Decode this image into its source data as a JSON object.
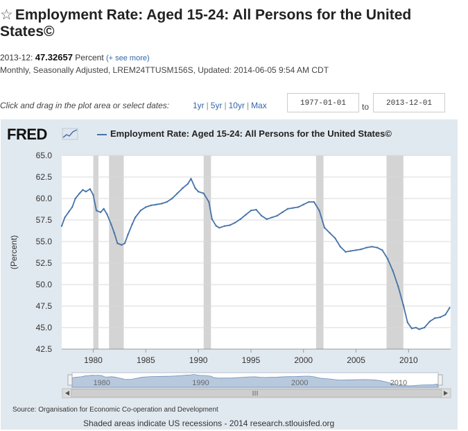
{
  "header": {
    "star_icon": "☆",
    "title": "Employment Rate: Aged 15-24: All Persons for the United States©",
    "obs_date": "2013-12:",
    "obs_value": "47.32657",
    "obs_unit": "Percent",
    "see_more": "(+ see more)",
    "meta": "Monthly, Seasonally Adjusted, LREM24TTUSM156S, Updated: 2014-06-05 9:54 AM CDT"
  },
  "controls": {
    "instruction": "Click and drag in the plot area or select dates:",
    "range_1yr": "1yr",
    "range_5yr": "5yr",
    "range_10yr": "10yr",
    "range_max": "Max",
    "start_date": "1977-01-01",
    "to_label": "to",
    "end_date": "2013-12-01"
  },
  "logo": "FRED",
  "footer": {
    "source": "Source: Organisation for Economic Co-operation and Development",
    "shaded": "Shaded areas indicate US recessions - 2014 research.stlouisfed.org"
  },
  "colors": {
    "series": "#4572a7",
    "panel_bg": "#e1e9f0",
    "recession": "#d4d4d4",
    "nav_fill": "#b8c9de"
  },
  "chart_data": {
    "type": "line",
    "title": "Employment Rate: Aged 15-24: All Persons for the United States©",
    "ylabel": "(Percent)",
    "xlabel": "",
    "xlim": [
      1977.0,
      2014.0
    ],
    "ylim": [
      42.5,
      65.0
    ],
    "yticks": [
      "42.5",
      "45.0",
      "47.5",
      "50.0",
      "52.5",
      "55.0",
      "57.5",
      "60.0",
      "62.5",
      "65.0"
    ],
    "xticks": [
      "1980",
      "1985",
      "1990",
      "1995",
      "2000",
      "2005",
      "2010"
    ],
    "navigator_labels": [
      "1980",
      "1990",
      "2000",
      "2010"
    ],
    "recessions": [
      [
        1980.0,
        1980.5
      ],
      [
        1981.5,
        1982.9
      ],
      [
        1990.5,
        1991.2
      ],
      [
        2001.2,
        2001.9
      ],
      [
        2007.9,
        2009.5
      ]
    ],
    "series": [
      {
        "name": "Employment Rate: Aged 15-24: All Persons for the United States©",
        "points": [
          [
            1977.0,
            56.8
          ],
          [
            1977.3,
            57.8
          ],
          [
            1977.7,
            58.5
          ],
          [
            1978.0,
            59.0
          ],
          [
            1978.3,
            60.0
          ],
          [
            1978.7,
            60.6
          ],
          [
            1979.0,
            61.0
          ],
          [
            1979.3,
            60.8
          ],
          [
            1979.7,
            61.1
          ],
          [
            1980.0,
            60.4
          ],
          [
            1980.3,
            58.6
          ],
          [
            1980.7,
            58.4
          ],
          [
            1981.0,
            58.8
          ],
          [
            1981.3,
            58.2
          ],
          [
            1981.7,
            57.0
          ],
          [
            1982.0,
            56.0
          ],
          [
            1982.3,
            54.8
          ],
          [
            1982.7,
            54.6
          ],
          [
            1983.0,
            54.8
          ],
          [
            1983.3,
            55.8
          ],
          [
            1983.7,
            57.0
          ],
          [
            1984.0,
            57.8
          ],
          [
            1984.5,
            58.6
          ],
          [
            1985.0,
            59.0
          ],
          [
            1985.5,
            59.2
          ],
          [
            1986.0,
            59.3
          ],
          [
            1986.5,
            59.4
          ],
          [
            1987.0,
            59.6
          ],
          [
            1987.5,
            60.0
          ],
          [
            1988.0,
            60.6
          ],
          [
            1988.5,
            61.2
          ],
          [
            1989.0,
            61.7
          ],
          [
            1989.3,
            62.3
          ],
          [
            1989.7,
            61.2
          ],
          [
            1990.0,
            60.8
          ],
          [
            1990.5,
            60.6
          ],
          [
            1991.0,
            59.6
          ],
          [
            1991.3,
            57.6
          ],
          [
            1991.7,
            56.8
          ],
          [
            1992.0,
            56.6
          ],
          [
            1992.5,
            56.8
          ],
          [
            1993.0,
            56.9
          ],
          [
            1993.5,
            57.2
          ],
          [
            1994.0,
            57.6
          ],
          [
            1994.5,
            58.1
          ],
          [
            1995.0,
            58.6
          ],
          [
            1995.5,
            58.7
          ],
          [
            1996.0,
            58.0
          ],
          [
            1996.5,
            57.6
          ],
          [
            1997.0,
            57.8
          ],
          [
            1997.5,
            58.0
          ],
          [
            1998.0,
            58.4
          ],
          [
            1998.5,
            58.8
          ],
          [
            1999.0,
            58.9
          ],
          [
            1999.5,
            59.0
          ],
          [
            2000.0,
            59.3
          ],
          [
            2000.5,
            59.6
          ],
          [
            2001.0,
            59.6
          ],
          [
            2001.5,
            58.6
          ],
          [
            2002.0,
            56.6
          ],
          [
            2002.5,
            56.0
          ],
          [
            2003.0,
            55.4
          ],
          [
            2003.5,
            54.4
          ],
          [
            2004.0,
            53.8
          ],
          [
            2004.5,
            53.9
          ],
          [
            2005.0,
            54.0
          ],
          [
            2005.5,
            54.1
          ],
          [
            2006.0,
            54.3
          ],
          [
            2006.5,
            54.4
          ],
          [
            2007.0,
            54.3
          ],
          [
            2007.5,
            54.0
          ],
          [
            2008.0,
            53.0
          ],
          [
            2008.5,
            51.6
          ],
          [
            2009.0,
            49.8
          ],
          [
            2009.5,
            47.6
          ],
          [
            2009.9,
            45.6
          ],
          [
            2010.3,
            44.9
          ],
          [
            2010.7,
            45.0
          ],
          [
            2011.0,
            44.8
          ],
          [
            2011.5,
            45.0
          ],
          [
            2012.0,
            45.7
          ],
          [
            2012.5,
            46.1
          ],
          [
            2013.0,
            46.2
          ],
          [
            2013.5,
            46.5
          ],
          [
            2013.9,
            47.3
          ]
        ]
      }
    ]
  }
}
